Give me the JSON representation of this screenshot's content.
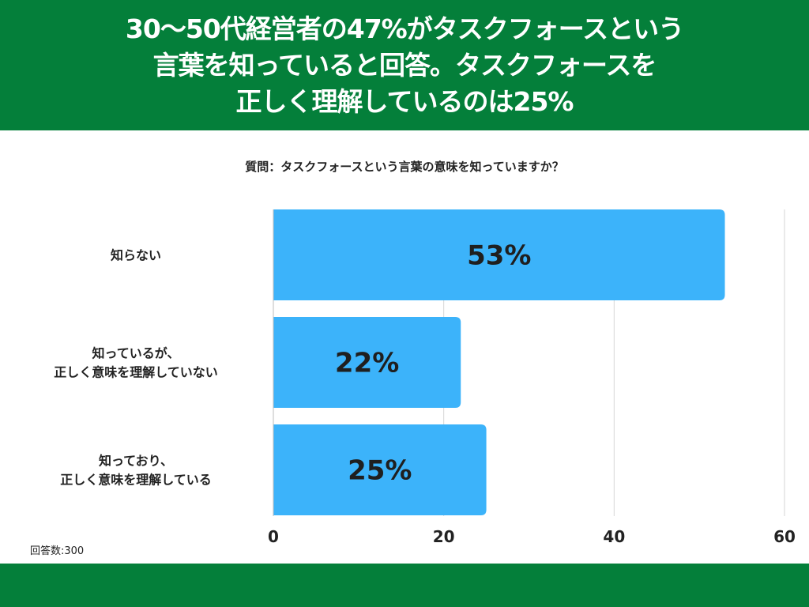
{
  "header": {
    "title_lines": [
      "30〜50代経営者の47%がタスクフォースという",
      "言葉を知っていると回答。タスクフォースを",
      "正しく理解しているのは25%"
    ]
  },
  "question": "質問：タスクフォースという言葉の意味を知っていますか？",
  "sample_note": "回答数:300",
  "colors": {
    "band": "#047f3a",
    "bar": "#3cb3fa",
    "grid": "#d6d6d6",
    "text": "#222222"
  },
  "chart_data": {
    "type": "bar",
    "orientation": "horizontal",
    "title": "質問：タスクフォースという言葉の意味を知っていますか？",
    "categories": [
      [
        "知らない"
      ],
      [
        "知っているが、",
        "正しく意味を理解していない"
      ],
      [
        "知っており、",
        "正しく意味を理解している"
      ]
    ],
    "values": [
      53,
      22,
      25
    ],
    "value_labels": [
      "53%",
      "22%",
      "25%"
    ],
    "xlim": [
      0,
      60
    ],
    "xticks": [
      0,
      20,
      40,
      60
    ],
    "xtick_labels": [
      "0",
      "20",
      "40",
      "60"
    ],
    "grid": true
  }
}
